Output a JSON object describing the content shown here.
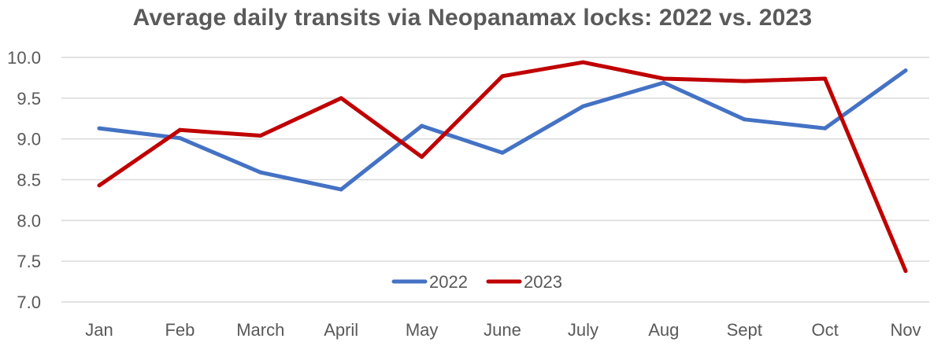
{
  "chart_data": {
    "type": "line",
    "title": "Average daily transits via Neopanamax locks: 2022 vs. 2023",
    "xlabel": "",
    "ylabel": "",
    "categories": [
      "Jan",
      "Feb",
      "March",
      "April",
      "May",
      "June",
      "July",
      "Aug",
      "Sept",
      "Oct",
      "Nov"
    ],
    "ylim": [
      7.0,
      10.0
    ],
    "yticks": [
      "7.0",
      "7.5",
      "8.0",
      "8.5",
      "9.0",
      "9.5",
      "10.0"
    ],
    "grid": true,
    "legend_position": "bottom-center",
    "series": [
      {
        "name": "2022",
        "color": "#4472c4",
        "values": [
          9.13,
          9.01,
          8.59,
          8.38,
          9.16,
          8.83,
          9.4,
          9.69,
          9.24,
          9.13,
          9.84
        ]
      },
      {
        "name": "2023",
        "color": "#c00000",
        "values": [
          8.43,
          9.11,
          9.04,
          9.5,
          8.78,
          9.77,
          9.94,
          9.74,
          9.71,
          9.74,
          7.38
        ]
      }
    ]
  }
}
